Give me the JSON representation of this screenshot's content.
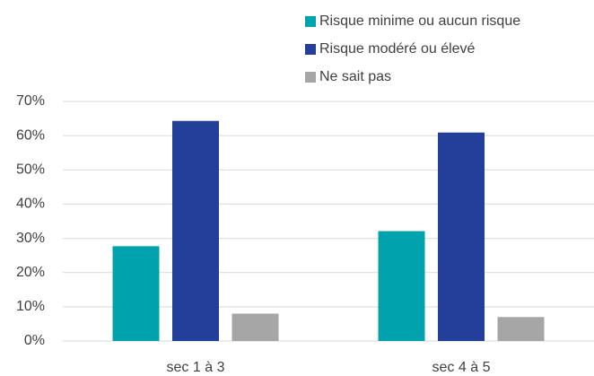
{
  "chart_data": {
    "type": "bar",
    "categories": [
      "sec 1 à 3",
      "sec 4 à 5"
    ],
    "series": [
      {
        "name": "Risque minime ou aucun risque",
        "color": "#00a2ad",
        "values": [
          27.7,
          32.1
        ]
      },
      {
        "name": "Risque modéré ou élevé",
        "color": "#233f99",
        "values": [
          64.3,
          60.9
        ]
      },
      {
        "name": "Ne sait pas",
        "color": "#a6a6a6",
        "values": [
          8.0,
          7.0
        ]
      }
    ],
    "ylim": [
      0,
      70
    ],
    "yticks": [
      {
        "value": 0,
        "label": "0%"
      },
      {
        "value": 10,
        "label": "10%"
      },
      {
        "value": 20,
        "label": "20%"
      },
      {
        "value": 30,
        "label": "30%"
      },
      {
        "value": 40,
        "label": "40%"
      },
      {
        "value": 50,
        "label": "50%"
      },
      {
        "value": 60,
        "label": "60%"
      },
      {
        "value": 70,
        "label": "70%"
      }
    ],
    "grid": true
  }
}
